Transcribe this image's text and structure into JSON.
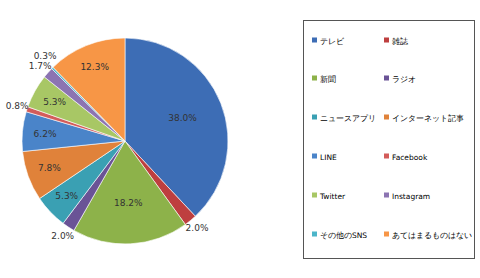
{
  "chart_data": {
    "type": "pie",
    "categories": [
      "テレビ",
      "雑誌",
      "新聞",
      "ラジオ",
      "ニュースアプリ",
      "インターネット記事",
      "LINE",
      "Facebook",
      "Twitter",
      "Instagram",
      "その他のSNS",
      "あてはまるものはない"
    ],
    "values": [
      38.0,
      2.0,
      18.2,
      2.0,
      5.3,
      7.8,
      6.2,
      0.8,
      5.3,
      1.7,
      0.3,
      12.3
    ],
    "value_labels": [
      "38.0%",
      "2.0%",
      "18.2%",
      "2.0%",
      "5.3%",
      "7.8%",
      "6.2%",
      "0.8%",
      "5.3%",
      "1.7%",
      "0.3%",
      "12.3%"
    ],
    "colors": [
      "#3d6db5",
      "#be3f3f",
      "#8db24a",
      "#6a5396",
      "#3aa0b3",
      "#e0823a",
      "#4a84c9",
      "#d35c5a",
      "#a8c765",
      "#8c74b2",
      "#4cb5c9",
      "#f79646"
    ],
    "data_labels": true,
    "legend": "right"
  }
}
